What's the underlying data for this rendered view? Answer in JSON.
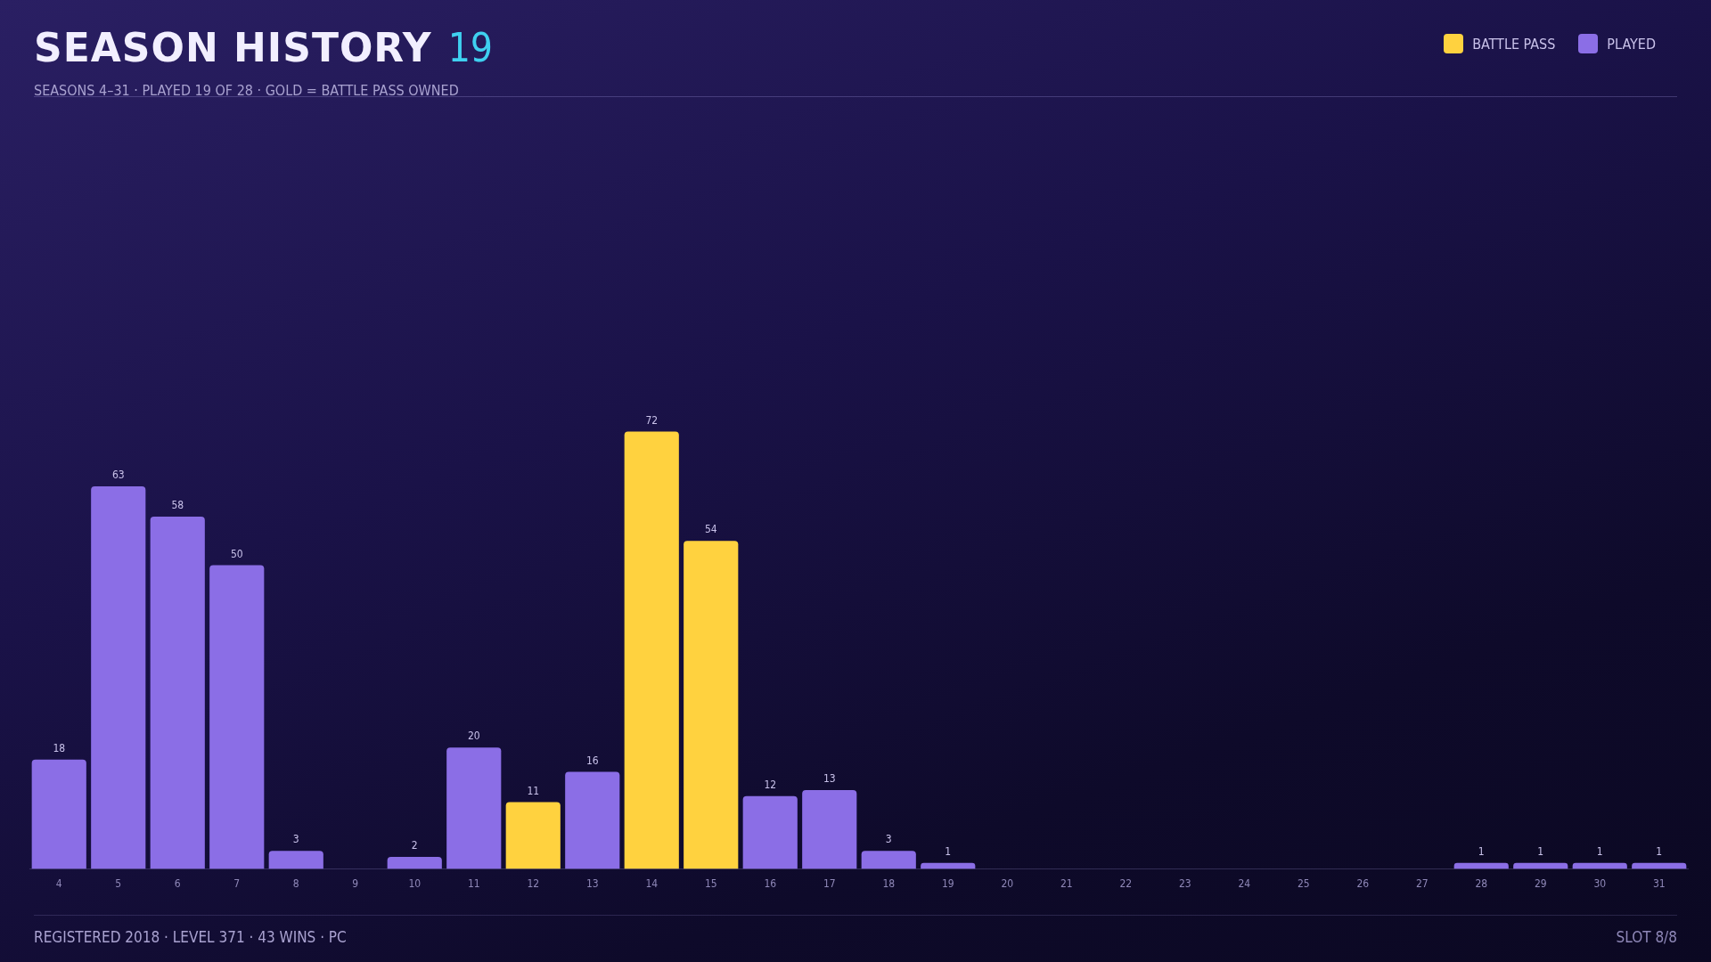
{
  "chart_data": {
    "type": "bar",
    "title": "SEASON HISTORY",
    "subtitle": "SEASONS 4–31 · PLAYED 19 OF 28 · GOLD = BATTLE PASS OWNED",
    "categories": [
      "4",
      "5",
      "6",
      "7",
      "8",
      "9",
      "10",
      "11",
      "12",
      "13",
      "14",
      "15",
      "16",
      "17",
      "18",
      "19",
      "20",
      "21",
      "22",
      "23",
      "24",
      "25",
      "26",
      "27",
      "28",
      "29",
      "30",
      "31"
    ],
    "series": [
      {
        "name": "BATTLE PASS",
        "color": "#ffd23f",
        "values": [
          null,
          null,
          null,
          null,
          null,
          null,
          null,
          null,
          11,
          null,
          72,
          54,
          null,
          null,
          null,
          null,
          null,
          null,
          null,
          null,
          null,
          null,
          null,
          null,
          null,
          null,
          null,
          null
        ]
      },
      {
        "name": "PLAYED",
        "color": "#8b6ee6",
        "values": [
          18,
          63,
          58,
          50,
          3,
          null,
          2,
          20,
          null,
          16,
          null,
          null,
          12,
          13,
          3,
          1,
          null,
          null,
          null,
          null,
          null,
          null,
          null,
          null,
          1,
          1,
          1,
          1
        ]
      }
    ],
    "stacked": true,
    "data_labels": true,
    "relative": false,
    "legend": "top right",
    "grid": false,
    "annotations": [
      "19",
      "REGISTERED 2018 · LEVEL 371 · 43 WINS · PC",
      "SLOT 8/8"
    ]
  }
}
